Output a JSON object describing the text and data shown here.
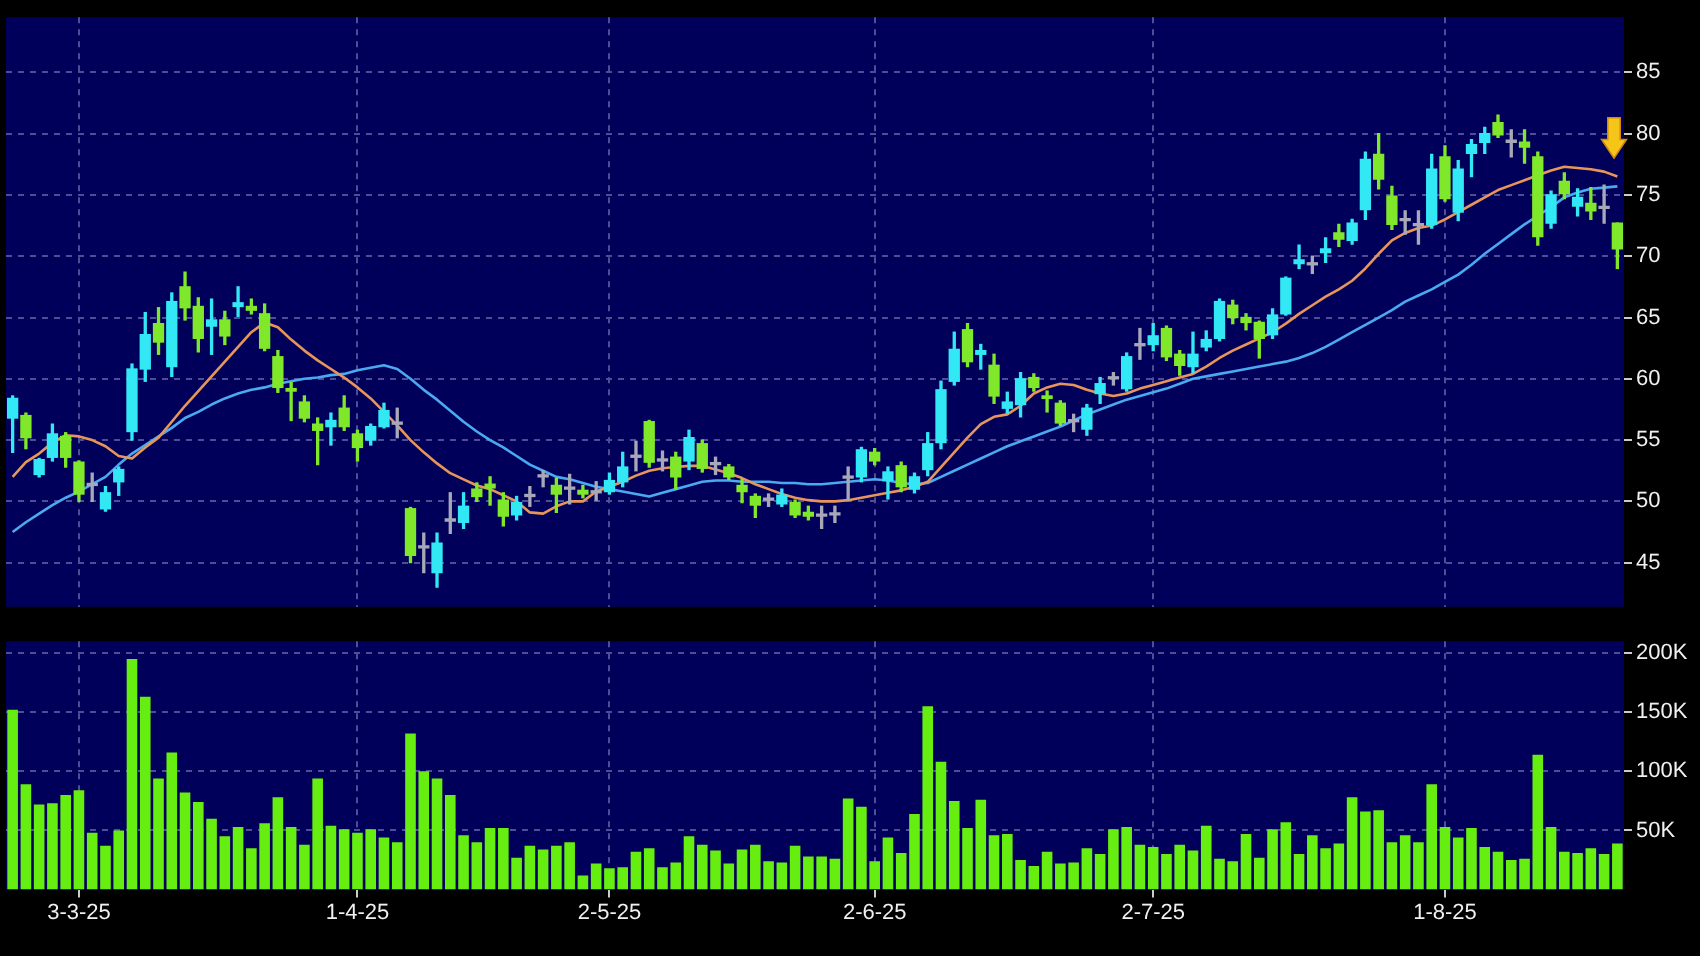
{
  "chart_data": [
    {
      "type": "candlestick",
      "categories": [
        null,
        null,
        null,
        null,
        null,
        null,
        null,
        null,
        null,
        null,
        null,
        null,
        null,
        null,
        null,
        null,
        null,
        null,
        null,
        null,
        null,
        null,
        null,
        null,
        null,
        null,
        null,
        null,
        null,
        null,
        null,
        null,
        null,
        null,
        null,
        null,
        null,
        null,
        null,
        null,
        null,
        null,
        null,
        null,
        null,
        null,
        null,
        null,
        null,
        null,
        null,
        null,
        null,
        null,
        null,
        null,
        null,
        null,
        null,
        null,
        null,
        null,
        null,
        null,
        null,
        null,
        null,
        null,
        null,
        null,
        null,
        null,
        null,
        null,
        null,
        null,
        null,
        null,
        null,
        null,
        null,
        null,
        null,
        null,
        null,
        null,
        null,
        null,
        null,
        null,
        null,
        null,
        null,
        null,
        null,
        null,
        null,
        null,
        null,
        null,
        null,
        null,
        null,
        null,
        null,
        null,
        null,
        null,
        null,
        null,
        null,
        null,
        null,
        null,
        null,
        null,
        null,
        null,
        null,
        null,
        null,
        null
      ],
      "ohlc": [
        [
          56.8,
          58.6,
          54.0,
          58.4
        ],
        [
          57.0,
          57.2,
          54.3,
          55.2
        ],
        [
          52.2,
          53.5,
          52.0,
          53.4
        ],
        [
          53.6,
          56.3,
          53.3,
          55.5
        ],
        [
          55.3,
          55.6,
          52.8,
          53.6
        ],
        [
          53.2,
          53.3,
          50.0,
          50.6
        ],
        [
          51.3,
          52.3,
          50.0,
          51.3
        ],
        [
          49.4,
          51.2,
          49.2,
          50.7
        ],
        [
          51.6,
          52.8,
          50.5,
          52.6
        ],
        [
          55.7,
          61.2,
          55.0,
          60.8
        ],
        [
          60.8,
          65.4,
          59.8,
          63.6
        ],
        [
          64.5,
          65.8,
          62.0,
          63.0
        ],
        [
          61.0,
          67.0,
          60.2,
          66.3
        ],
        [
          67.5,
          68.7,
          64.8,
          65.8
        ],
        [
          65.9,
          66.6,
          62.2,
          63.3
        ],
        [
          64.3,
          66.5,
          62.0,
          64.8
        ],
        [
          64.8,
          65.5,
          62.8,
          63.5
        ],
        [
          65.9,
          67.5,
          65.1,
          66.2
        ],
        [
          65.9,
          66.5,
          65.3,
          65.6
        ],
        [
          65.3,
          66.1,
          62.3,
          62.5
        ],
        [
          61.8,
          62.3,
          58.9,
          59.3
        ],
        [
          59.2,
          59.7,
          56.6,
          59.0
        ],
        [
          58.1,
          58.6,
          56.5,
          56.8
        ],
        [
          56.3,
          56.8,
          53.0,
          55.8
        ],
        [
          56.1,
          57.2,
          54.6,
          56.6
        ],
        [
          57.6,
          58.6,
          55.8,
          56.1
        ],
        [
          55.5,
          55.8,
          53.3,
          54.4
        ],
        [
          55.0,
          56.3,
          54.6,
          56.1
        ],
        [
          56.1,
          58.0,
          56.0,
          57.4
        ],
        [
          56.3,
          57.6,
          55.2,
          56.3
        ],
        [
          49.4,
          49.5,
          45.0,
          45.6
        ],
        [
          46.2,
          47.4,
          44.2,
          46.2
        ],
        [
          44.2,
          47.4,
          43.0,
          46.6
        ],
        [
          48.4,
          50.7,
          47.4,
          48.4
        ],
        [
          48.3,
          50.7,
          47.8,
          49.6
        ],
        [
          51.0,
          51.5,
          50.0,
          50.4
        ],
        [
          51.4,
          52.0,
          49.7,
          51.1
        ],
        [
          50.1,
          50.7,
          48.0,
          48.8
        ],
        [
          48.9,
          50.4,
          48.5,
          49.9
        ],
        [
          50.4,
          51.2,
          49.6,
          50.4
        ],
        [
          52.0,
          52.5,
          51.2,
          52.0
        ],
        [
          51.3,
          51.9,
          49.1,
          50.6
        ],
        [
          51.0,
          52.2,
          49.8,
          51.0
        ],
        [
          50.9,
          51.3,
          50.3,
          50.6
        ],
        [
          50.7,
          51.6,
          50.1,
          50.7
        ],
        [
          50.8,
          52.3,
          50.6,
          51.7
        ],
        [
          51.6,
          54.0,
          51.2,
          52.8
        ],
        [
          53.6,
          54.9,
          52.5,
          53.6
        ],
        [
          56.5,
          56.6,
          52.8,
          53.2
        ],
        [
          53.3,
          54.1,
          52.5,
          53.3
        ],
        [
          53.6,
          54.0,
          51.0,
          52.0
        ],
        [
          53.3,
          55.8,
          52.6,
          55.2
        ],
        [
          54.7,
          55.0,
          52.4,
          52.7
        ],
        [
          53.0,
          53.6,
          52.2,
          53.0
        ],
        [
          52.8,
          53.0,
          51.8,
          52.0
        ],
        [
          51.3,
          51.8,
          49.9,
          50.8
        ],
        [
          50.4,
          50.6,
          48.7,
          49.7
        ],
        [
          50.1,
          50.6,
          49.6,
          50.1
        ],
        [
          49.8,
          51.0,
          49.6,
          50.5
        ],
        [
          49.9,
          50.1,
          48.7,
          48.9
        ],
        [
          49.1,
          49.6,
          48.5,
          48.8
        ],
        [
          48.8,
          49.6,
          47.8,
          48.8
        ],
        [
          48.9,
          49.6,
          48.3,
          48.9
        ],
        [
          51.9,
          52.8,
          50.1,
          51.9
        ],
        [
          52.0,
          54.4,
          51.6,
          54.2
        ],
        [
          54.0,
          54.3,
          53.0,
          53.3
        ],
        [
          51.7,
          52.8,
          50.2,
          52.4
        ],
        [
          52.9,
          53.2,
          50.8,
          51.2
        ],
        [
          51.0,
          52.3,
          50.7,
          52.0
        ],
        [
          52.6,
          55.6,
          52.1,
          54.7
        ],
        [
          54.8,
          59.8,
          54.3,
          59.1
        ],
        [
          59.8,
          63.8,
          59.5,
          62.4
        ],
        [
          64.0,
          64.5,
          61.0,
          61.4
        ],
        [
          62.0,
          62.8,
          60.8,
          62.3
        ],
        [
          61.1,
          62.0,
          58.0,
          58.6
        ],
        [
          57.6,
          58.9,
          57.2,
          58.1
        ],
        [
          57.9,
          60.5,
          56.9,
          60.0
        ],
        [
          60.1,
          60.4,
          59.0,
          59.3
        ],
        [
          58.6,
          59.0,
          57.3,
          58.4
        ],
        [
          58.0,
          58.2,
          56.2,
          56.4
        ],
        [
          56.5,
          57.1,
          55.7,
          56.5
        ],
        [
          55.9,
          57.9,
          55.4,
          57.6
        ],
        [
          58.8,
          60.1,
          58.0,
          59.6
        ],
        [
          60.0,
          60.5,
          59.5,
          60.0
        ],
        [
          59.2,
          62.1,
          59.0,
          61.8
        ],
        [
          62.7,
          64.1,
          61.6,
          62.7
        ],
        [
          62.8,
          64.5,
          62.3,
          63.5
        ],
        [
          64.1,
          64.3,
          61.5,
          61.8
        ],
        [
          62.0,
          62.3,
          60.3,
          61.1
        ],
        [
          61.0,
          63.8,
          60.5,
          62.0
        ],
        [
          62.6,
          63.9,
          62.3,
          63.2
        ],
        [
          63.3,
          66.5,
          63.1,
          66.3
        ],
        [
          66.0,
          66.4,
          64.5,
          65.0
        ],
        [
          65.0,
          65.3,
          64.0,
          64.6
        ],
        [
          64.6,
          64.7,
          61.7,
          63.3
        ],
        [
          63.6,
          65.7,
          63.3,
          65.2
        ],
        [
          65.3,
          68.3,
          65.2,
          68.2
        ],
        [
          69.4,
          70.9,
          69.0,
          69.7
        ],
        [
          69.3,
          70.0,
          68.6,
          69.3
        ],
        [
          70.3,
          71.5,
          69.5,
          70.6
        ],
        [
          71.9,
          72.6,
          70.8,
          71.4
        ],
        [
          71.3,
          73.0,
          71.0,
          72.7
        ],
        [
          73.8,
          78.5,
          73.0,
          77.9
        ],
        [
          78.3,
          80.0,
          75.5,
          76.3
        ],
        [
          74.9,
          75.7,
          72.2,
          72.6
        ],
        [
          72.9,
          73.7,
          71.8,
          72.9
        ],
        [
          72.5,
          73.7,
          71.0,
          72.5
        ],
        [
          72.6,
          78.3,
          72.3,
          77.1
        ],
        [
          78.1,
          79.0,
          74.5,
          74.7
        ],
        [
          73.6,
          77.8,
          72.9,
          77.1
        ],
        [
          78.4,
          79.5,
          76.5,
          79.1
        ],
        [
          79.3,
          80.5,
          78.4,
          80.0
        ],
        [
          80.9,
          81.5,
          79.7,
          79.9
        ],
        [
          79.3,
          80.3,
          78.1,
          79.3
        ],
        [
          79.3,
          80.3,
          77.6,
          78.9
        ],
        [
          78.1,
          78.5,
          70.9,
          71.6
        ],
        [
          72.7,
          75.3,
          72.3,
          75.0
        ],
        [
          76.1,
          76.8,
          74.7,
          75.1
        ],
        [
          74.1,
          75.5,
          73.3,
          74.8
        ],
        [
          74.3,
          75.6,
          73.0,
          73.7
        ],
        [
          73.9,
          75.8,
          72.7,
          73.9
        ],
        [
          72.7,
          72.7,
          69.0,
          70.6
        ]
      ],
      "colors": [
        "#33e8f5",
        "#80e82a",
        "#33e8f5",
        "#33e8f5",
        "#80e82a",
        "#80e82a",
        "#a8a8b8",
        "#33e8f5",
        "#33e8f5",
        "#33e8f5",
        "#33e8f5",
        "#80e82a",
        "#33e8f5",
        "#80e82a",
        "#80e82a",
        "#33e8f5",
        "#80e82a",
        "#33e8f5",
        "#80e82a",
        "#80e82a",
        "#80e82a",
        "#80e82a",
        "#80e82a",
        "#80e82a",
        "#33e8f5",
        "#80e82a",
        "#80e82a",
        "#33e8f5",
        "#33e8f5",
        "#a8a8b8",
        "#80e82a",
        "#a8a8b8",
        "#33e8f5",
        "#a8a8b8",
        "#33e8f5",
        "#80e82a",
        "#80e82a",
        "#80e82a",
        "#33e8f5",
        "#a8a8b8",
        "#a8a8b8",
        "#80e82a",
        "#a8a8b8",
        "#80e82a",
        "#a8a8b8",
        "#33e8f5",
        "#33e8f5",
        "#a8a8b8",
        "#80e82a",
        "#a8a8b8",
        "#80e82a",
        "#33e8f5",
        "#80e82a",
        "#a8a8b8",
        "#80e82a",
        "#80e82a",
        "#80e82a",
        "#a8a8b8",
        "#33e8f5",
        "#80e82a",
        "#80e82a",
        "#a8a8b8",
        "#a8a8b8",
        "#a8a8b8",
        "#33e8f5",
        "#80e82a",
        "#33e8f5",
        "#80e82a",
        "#33e8f5",
        "#33e8f5",
        "#33e8f5",
        "#33e8f5",
        "#80e82a",
        "#33e8f5",
        "#80e82a",
        "#33e8f5",
        "#33e8f5",
        "#80e82a",
        "#80e82a",
        "#80e82a",
        "#a8a8b8",
        "#33e8f5",
        "#33e8f5",
        "#a8a8b8",
        "#33e8f5",
        "#a8a8b8",
        "#33e8f5",
        "#80e82a",
        "#80e82a",
        "#33e8f5",
        "#33e8f5",
        "#33e8f5",
        "#80e82a",
        "#80e82a",
        "#80e82a",
        "#33e8f5",
        "#33e8f5",
        "#33e8f5",
        "#a8a8b8",
        "#33e8f5",
        "#80e82a",
        "#33e8f5",
        "#33e8f5",
        "#80e82a",
        "#80e82a",
        "#a8a8b8",
        "#a8a8b8",
        "#33e8f5",
        "#80e82a",
        "#33e8f5",
        "#33e8f5",
        "#33e8f5",
        "#80e82a",
        "#a8a8b8",
        "#80e82a",
        "#80e82a",
        "#33e8f5",
        "#80e82a",
        "#33e8f5",
        "#80e82a",
        "#a8a8b8",
        "#80e82a"
      ],
      "series": [
        {
          "type": "line",
          "color": "#e8955a",
          "values": [
            52.0,
            53.2,
            53.9,
            54.8,
            55.4,
            55.3,
            55.0,
            54.5,
            53.7,
            53.5,
            54.4,
            55.2,
            56.5,
            57.8,
            59.0,
            60.2,
            61.4,
            62.6,
            63.8,
            64.6,
            64.2,
            63.2,
            62.3,
            61.5,
            60.8,
            60.1,
            59.3,
            58.4,
            57.3,
            56.2,
            55.0,
            54.0,
            53.1,
            52.3,
            51.8,
            51.3,
            51.0,
            50.5,
            50.0,
            49.1,
            49.0,
            49.6,
            50.0,
            50.0,
            50.8,
            51.2,
            51.6,
            52.1,
            52.5,
            52.7,
            52.8,
            52.9,
            52.9,
            52.6,
            52.3,
            51.9,
            51.4,
            51.0,
            50.6,
            50.3,
            50.1,
            50.0,
            50.0,
            50.1,
            50.3,
            50.5,
            50.7,
            50.9,
            51.2,
            51.6,
            52.8,
            54.0,
            55.2,
            56.3,
            56.9,
            57.1,
            57.8,
            58.8,
            59.3,
            59.6,
            59.5,
            59.1,
            58.8,
            58.6,
            58.8,
            59.2,
            59.5,
            59.8,
            60.1,
            60.4,
            61.0,
            61.7,
            62.3,
            62.8,
            63.3,
            63.8,
            64.5,
            65.3,
            66.0,
            66.7,
            67.3,
            68.0,
            69.0,
            70.2,
            71.3,
            71.9,
            72.3,
            72.5,
            73.0,
            73.6,
            74.2,
            74.8,
            75.4,
            75.8,
            76.2,
            76.6,
            77.0,
            77.3,
            77.2,
            77.1,
            76.9,
            76.5
          ]
        },
        {
          "type": "line",
          "color": "#4aaaf0",
          "values": [
            47.5,
            48.3,
            49.0,
            49.7,
            50.3,
            50.8,
            51.4,
            52.0,
            53.0,
            53.9,
            54.6,
            55.3,
            56.0,
            56.8,
            57.3,
            57.9,
            58.4,
            58.8,
            59.1,
            59.3,
            59.6,
            59.8,
            60.0,
            60.1,
            60.3,
            60.4,
            60.7,
            60.9,
            61.1,
            60.8,
            60.0,
            59.1,
            58.3,
            57.4,
            56.5,
            55.7,
            55.0,
            54.4,
            53.7,
            53.0,
            52.5,
            52.0,
            51.8,
            51.5,
            51.2,
            51.0,
            50.8,
            50.6,
            50.4,
            50.7,
            51.0,
            51.3,
            51.6,
            51.7,
            51.7,
            51.6,
            51.6,
            51.6,
            51.5,
            51.5,
            51.4,
            51.4,
            51.5,
            51.6,
            51.7,
            51.8,
            51.7,
            51.5,
            51.4,
            51.5,
            52.0,
            52.5,
            53.0,
            53.5,
            54.0,
            54.5,
            54.9,
            55.3,
            55.7,
            56.1,
            56.6,
            57.1,
            57.5,
            57.9,
            58.3,
            58.6,
            58.9,
            59.2,
            59.6,
            60.0,
            60.2,
            60.4,
            60.6,
            60.8,
            61.0,
            61.2,
            61.4,
            61.7,
            62.1,
            62.6,
            63.2,
            63.8,
            64.4,
            65.0,
            65.6,
            66.3,
            66.8,
            67.3,
            67.9,
            68.5,
            69.3,
            70.2,
            71.0,
            71.8,
            72.6,
            73.3,
            74.0,
            74.8,
            75.2,
            75.5,
            75.6,
            75.7
          ]
        }
      ],
      "ylim": [
        41.4,
        89.5
      ],
      "yticks": [
        45,
        50,
        55,
        60,
        65,
        70,
        75,
        80,
        85
      ],
      "grid": true,
      "tick_labels": "y",
      "marker": "none",
      "line_style": "solid"
    },
    {
      "type": "bar",
      "categories": [
        null,
        null,
        null,
        null,
        null,
        "3-3-25",
        null,
        null,
        null,
        null,
        null,
        null,
        null,
        null,
        null,
        null,
        null,
        null,
        null,
        null,
        null,
        null,
        null,
        null,
        null,
        null,
        "1-4-25",
        null,
        null,
        null,
        null,
        null,
        null,
        null,
        null,
        null,
        null,
        null,
        null,
        null,
        null,
        null,
        null,
        null,
        null,
        "2-5-25",
        null,
        null,
        null,
        null,
        null,
        null,
        null,
        null,
        null,
        null,
        null,
        null,
        null,
        null,
        null,
        null,
        null,
        null,
        null,
        "2-6-25",
        null,
        null,
        null,
        null,
        null,
        null,
        null,
        null,
        null,
        null,
        null,
        null,
        null,
        null,
        null,
        null,
        null,
        null,
        null,
        null,
        "2-7-25",
        null,
        null,
        null,
        null,
        null,
        null,
        null,
        null,
        null,
        null,
        null,
        null,
        null,
        null,
        null,
        null,
        null,
        null,
        null,
        null,
        null,
        "1-8-25",
        null,
        null,
        null,
        null,
        null,
        null,
        null,
        null,
        null,
        null,
        null,
        null,
        null
      ],
      "values": [
        152000,
        89000,
        72000,
        73000,
        80000,
        84000,
        48000,
        37000,
        50000,
        195000,
        163000,
        94000,
        116000,
        82000,
        74000,
        60000,
        45000,
        53000,
        35000,
        56000,
        78000,
        53000,
        38000,
        94000,
        54000,
        51000,
        48000,
        51000,
        44000,
        40000,
        132000,
        100000,
        94000,
        80000,
        46000,
        40000,
        52000,
        52000,
        27000,
        37000,
        34000,
        37000,
        40000,
        12000,
        22000,
        18000,
        19000,
        32000,
        35000,
        19000,
        23000,
        45000,
        38000,
        33000,
        22000,
        34000,
        38000,
        24000,
        23000,
        37000,
        28000,
        28000,
        26000,
        77000,
        70000,
        24000,
        44000,
        31000,
        64000,
        155000,
        108000,
        75000,
        52000,
        76000,
        46000,
        47000,
        25000,
        20000,
        32000,
        22000,
        23000,
        35000,
        30000,
        51000,
        53000,
        38000,
        36000,
        30000,
        38000,
        33000,
        54000,
        26000,
        24000,
        47000,
        27000,
        51000,
        57000,
        30000,
        46000,
        35000,
        39000,
        78000,
        66000,
        67000,
        40000,
        46000,
        40000,
        89000,
        53000,
        44000,
        52000,
        36000,
        32000,
        25000,
        26000,
        114000,
        53000,
        32000,
        31000,
        35000,
        30000,
        39000
      ],
      "color": "#66ee11",
      "ylim": [
        0,
        210000
      ],
      "yticks": [
        {
          "value": 50000,
          "label": "50K"
        },
        {
          "value": 100000,
          "label": "100K"
        },
        {
          "value": 150000,
          "label": "150K"
        },
        {
          "value": 200000,
          "label": "200K"
        }
      ],
      "grid": true
    }
  ]
}
